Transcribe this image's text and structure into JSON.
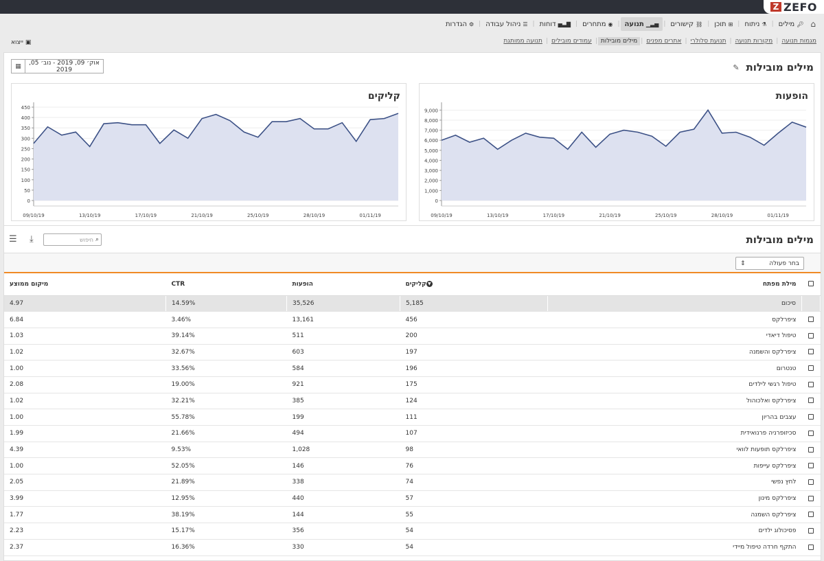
{
  "brand": {
    "name": "ZEFO",
    "mark": "Z"
  },
  "main_nav": [
    {
      "label": "מילים",
      "icon": "key-icon",
      "glyph": "🔑︎",
      "active": false
    },
    {
      "label": "ניתוח",
      "icon": "flask-icon",
      "glyph": "⚗",
      "active": false
    },
    {
      "label": "תוכן",
      "icon": "sitemap-icon",
      "glyph": "⊞",
      "active": false
    },
    {
      "label": "קישורים",
      "icon": "link-icon",
      "glyph": "⛓",
      "active": false
    },
    {
      "label": "תנועה",
      "icon": "bar-chart-icon",
      "glyph": "▁▃▅",
      "active": true
    },
    {
      "label": "מתחרים",
      "icon": "eye-icon",
      "glyph": "◉",
      "active": false
    },
    {
      "label": "דוחות",
      "icon": "chart-icon",
      "glyph": "▅▃▇",
      "active": false
    },
    {
      "label": "ניהול עבודה",
      "icon": "list-icon",
      "glyph": "☰",
      "active": false
    },
    {
      "label": "הגדרות",
      "icon": "gear-icon",
      "glyph": "⚙",
      "active": false
    }
  ],
  "exit_label": "ייצוא",
  "sub_nav": [
    {
      "label": "מגמות תנועה",
      "active": false
    },
    {
      "label": "מקורות תנועה",
      "active": false
    },
    {
      "label": "תנועת סלולרי",
      "active": false
    },
    {
      "label": "אתרים מפנים",
      "active": false
    },
    {
      "label": "מילים מובילות",
      "active": true
    },
    {
      "label": "עמודים מובילים",
      "active": false
    },
    {
      "label": "תנועה ממותגת",
      "active": false
    }
  ],
  "page_title": "מילים מובילות",
  "date_range": "אוק׳ 09, 2019 - נוב׳ 05, 2019",
  "charts": {
    "impressions_title": "הופעות",
    "clicks_title": "קליקים"
  },
  "chart_data": [
    {
      "type": "area",
      "title": "הופעות",
      "x_ticks": [
        "09/10/19",
        "13/10/19",
        "17/10/19",
        "21/10/19",
        "25/10/19",
        "28/10/19",
        "01/11/19"
      ],
      "y_ticks": [
        "0",
        "1,000",
        "2,000",
        "3,000",
        "4,000",
        "5,000",
        "6,000",
        "7,000",
        "8,000",
        "9,000"
      ],
      "ylim": [
        0,
        9500
      ],
      "values": [
        6000,
        6500,
        5800,
        6200,
        5100,
        6000,
        6700,
        6300,
        6200,
        5100,
        6800,
        5300,
        6600,
        7000,
        6800,
        6400,
        5400,
        6800,
        7100,
        9000,
        6700,
        6800,
        6300,
        5500,
        6700,
        7800,
        7300
      ],
      "color": "#dde1f0",
      "line_color": "#3c5186"
    },
    {
      "type": "area",
      "title": "קליקים",
      "x_ticks": [
        "09/10/19",
        "13/10/19",
        "17/10/19",
        "21/10/19",
        "25/10/19",
        "28/10/19",
        "01/11/19"
      ],
      "y_ticks": [
        "0",
        "50",
        "100",
        "150",
        "200",
        "250",
        "300",
        "350",
        "400",
        "450"
      ],
      "ylim": [
        0,
        460
      ],
      "values": [
        275,
        355,
        315,
        330,
        260,
        370,
        375,
        365,
        365,
        275,
        340,
        300,
        395,
        415,
        385,
        330,
        305,
        380,
        380,
        395,
        345,
        345,
        375,
        285,
        390,
        395,
        420
      ],
      "color": "#dde1f0",
      "line_color": "#3c5186"
    }
  ],
  "section_title": "מילים מובילות",
  "search_placeholder": "חיפוש",
  "action_select": "בחר פעולה",
  "table": {
    "headers": {
      "keyword": "מילת מפתח",
      "clicks": "קליקים",
      "impressions": "הופעות",
      "ctr": "CTR",
      "position": "מיקום ממוצע"
    },
    "total": {
      "keyword": "סיכום",
      "clicks": "5,185",
      "impressions": "35,526",
      "ctr": "14.59%",
      "position": "4.97"
    },
    "rows": [
      {
        "keyword": "ציפרלקס",
        "clicks": "456",
        "impressions": "13,161",
        "ctr": "3.46%",
        "position": "6.84"
      },
      {
        "keyword": "טיפול דיאדי",
        "clicks": "200",
        "impressions": "511",
        "ctr": "39.14%",
        "position": "1.03"
      },
      {
        "keyword": "ציפרלקס והשמנה",
        "clicks": "197",
        "impressions": "603",
        "ctr": "32.67%",
        "position": "1.02"
      },
      {
        "keyword": "טנטרום",
        "clicks": "196",
        "impressions": "584",
        "ctr": "33.56%",
        "position": "1.00"
      },
      {
        "keyword": "טיפול רגשי לילדים",
        "clicks": "175",
        "impressions": "921",
        "ctr": "19.00%",
        "position": "2.08"
      },
      {
        "keyword": "ציפרלקס ואלכוהול",
        "clicks": "124",
        "impressions": "385",
        "ctr": "32.21%",
        "position": "1.02"
      },
      {
        "keyword": "עצבים בהריון",
        "clicks": "111",
        "impressions": "199",
        "ctr": "55.78%",
        "position": "1.00"
      },
      {
        "keyword": "סכיזופרניה פרנואידית",
        "clicks": "107",
        "impressions": "494",
        "ctr": "21.66%",
        "position": "1.99"
      },
      {
        "keyword": "ציפרלקס תופעות לוואי",
        "clicks": "98",
        "impressions": "1,028",
        "ctr": "9.53%",
        "position": "4.39"
      },
      {
        "keyword": "ציפרלקס עייפות",
        "clicks": "76",
        "impressions": "146",
        "ctr": "52.05%",
        "position": "1.00"
      },
      {
        "keyword": "לחץ נפשי",
        "clicks": "74",
        "impressions": "338",
        "ctr": "21.89%",
        "position": "2.05"
      },
      {
        "keyword": "ציפרלקס מינון",
        "clicks": "57",
        "impressions": "440",
        "ctr": "12.95%",
        "position": "3.99"
      },
      {
        "keyword": "ציפרלקס השמנה",
        "clicks": "55",
        "impressions": "144",
        "ctr": "38.19%",
        "position": "1.77"
      },
      {
        "keyword": "פסיכולוג ילדים",
        "clicks": "54",
        "impressions": "356",
        "ctr": "15.17%",
        "position": "2.23"
      },
      {
        "keyword": "התקף חרדה טיפול מיידי",
        "clicks": "54",
        "impressions": "330",
        "ctr": "16.36%",
        "position": "2.37"
      }
    ]
  }
}
